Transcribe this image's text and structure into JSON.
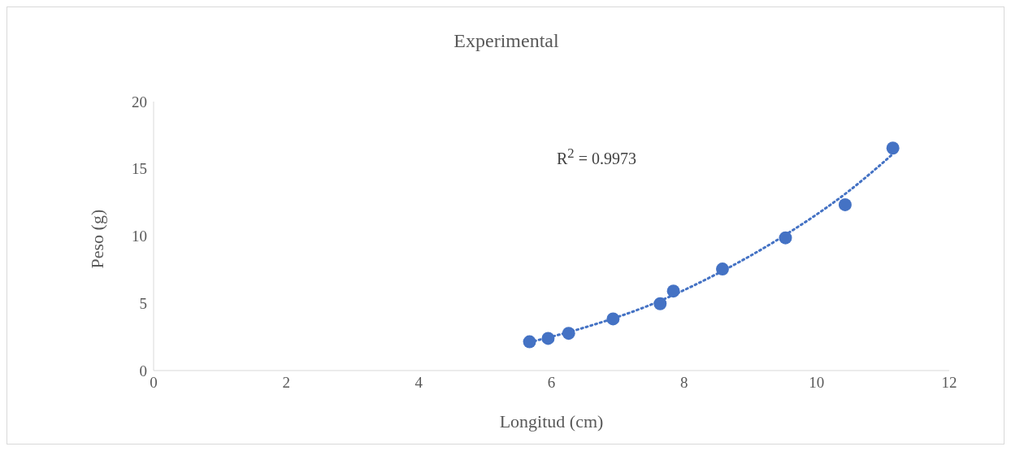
{
  "chart_data": {
    "type": "scatter",
    "title": "Experimental",
    "xlabel": "Longitud (cm)",
    "ylabel": "Peso (g)",
    "annotations": [
      "R$^{2}$ = 0.9973"
    ],
    "xlim": [
      0,
      12
    ],
    "xticks": [
      0,
      2,
      4,
      6,
      8,
      10,
      12
    ],
    "ylim": [
      0,
      20
    ],
    "yticks": [
      0,
      5,
      10,
      15,
      20
    ],
    "grid": false,
    "series": [
      {
        "marker": "circle",
        "color": "#4472c4",
        "x": [
          5.67,
          5.95,
          6.26,
          6.93,
          7.64,
          7.84,
          8.58,
          9.53,
          10.43,
          11.15
        ],
        "values": [
          2.14,
          2.39,
          2.77,
          3.84,
          4.97,
          5.91,
          7.55,
          9.87,
          12.33,
          16.54
        ]
      },
      {
        "type": "line",
        "color": "#4472c4",
        "line_style": "dotted",
        "marker": "none",
        "x": [
          5.67,
          6.5,
          7.5,
          8.5,
          9.5,
          10.5,
          11.15
        ],
        "values": [
          2.1,
          3.2,
          4.9,
          7.2,
          10.0,
          13.4,
          16.1
        ]
      }
    ]
  }
}
